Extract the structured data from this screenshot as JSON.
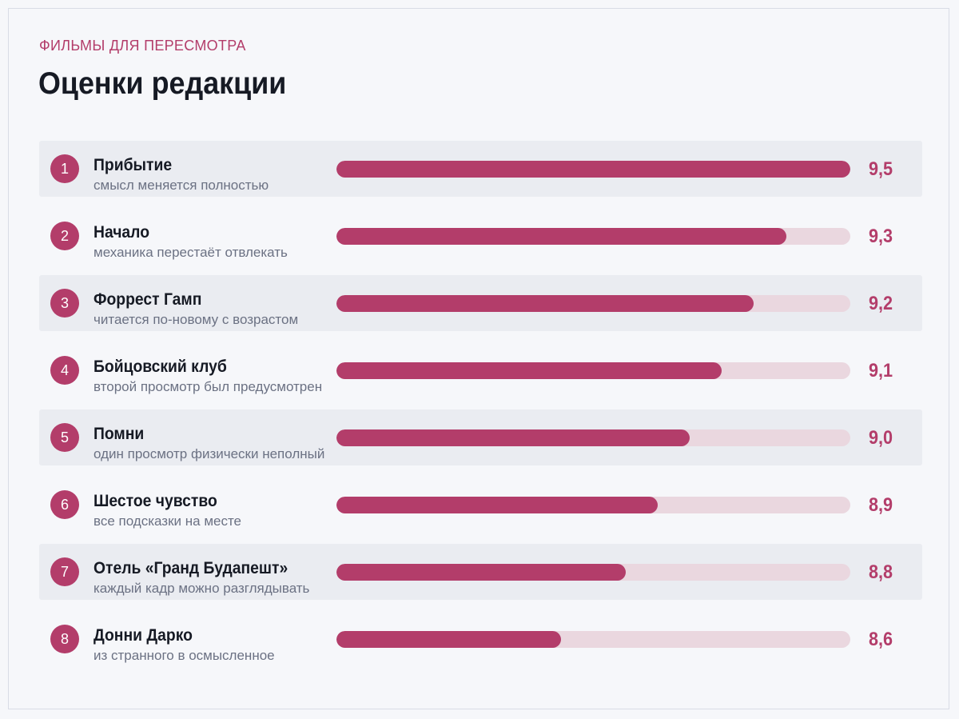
{
  "header": {
    "kicker": "ФИЛЬМЫ ДЛЯ ПЕРЕСМОТРА",
    "title": "Оценки редакции"
  },
  "colors": {
    "accent": "#b33d6a",
    "track": "#ead7df",
    "row_shade": "#eaecf1"
  },
  "chart_data": {
    "type": "bar",
    "orientation": "horizontal",
    "title": "Оценки редакции",
    "subtitle": "ФИЛЬМЫ ДЛЯ ПЕРЕСМОТРА",
    "grid": false,
    "categories": [
      "Прибытие",
      "Начало",
      "Форрест Гамп",
      "Бойцовский клуб",
      "Помни",
      "Шестое чувство",
      "Отель «Гранд Будапешт»",
      "Донни Дарко"
    ],
    "values": [
      9.5,
      9.3,
      9.2,
      9.1,
      9.0,
      8.9,
      8.8,
      8.6
    ],
    "xlim": [
      7.9,
      9.5
    ],
    "items": [
      {
        "rank": "1",
        "title": "Прибытие",
        "note": "смысл меняется полностью",
        "score": 9.5,
        "score_label": "9,5"
      },
      {
        "rank": "2",
        "title": "Начало",
        "note": "механика перестаёт отвлекать",
        "score": 9.3,
        "score_label": "9,3"
      },
      {
        "rank": "3",
        "title": "Форрест Гамп",
        "note": "читается по-новому с возрастом",
        "score": 9.2,
        "score_label": "9,2"
      },
      {
        "rank": "4",
        "title": "Бойцовский клуб",
        "note": "второй просмотр был предусмотрен",
        "score": 9.1,
        "score_label": "9,1"
      },
      {
        "rank": "5",
        "title": "Помни",
        "note": "один просмотр физически неполный",
        "score": 9.0,
        "score_label": "9,0"
      },
      {
        "rank": "6",
        "title": "Шестое чувство",
        "note": "все подсказки на месте",
        "score": 8.9,
        "score_label": "8,9"
      },
      {
        "rank": "7",
        "title": "Отель «Гранд Будапешт»",
        "note": "каждый кадр можно разглядывать",
        "score": 8.8,
        "score_label": "8,8"
      },
      {
        "rank": "8",
        "title": "Донни Дарко",
        "note": "из странного в осмысленное",
        "score": 8.6,
        "score_label": "8,6"
      }
    ]
  }
}
